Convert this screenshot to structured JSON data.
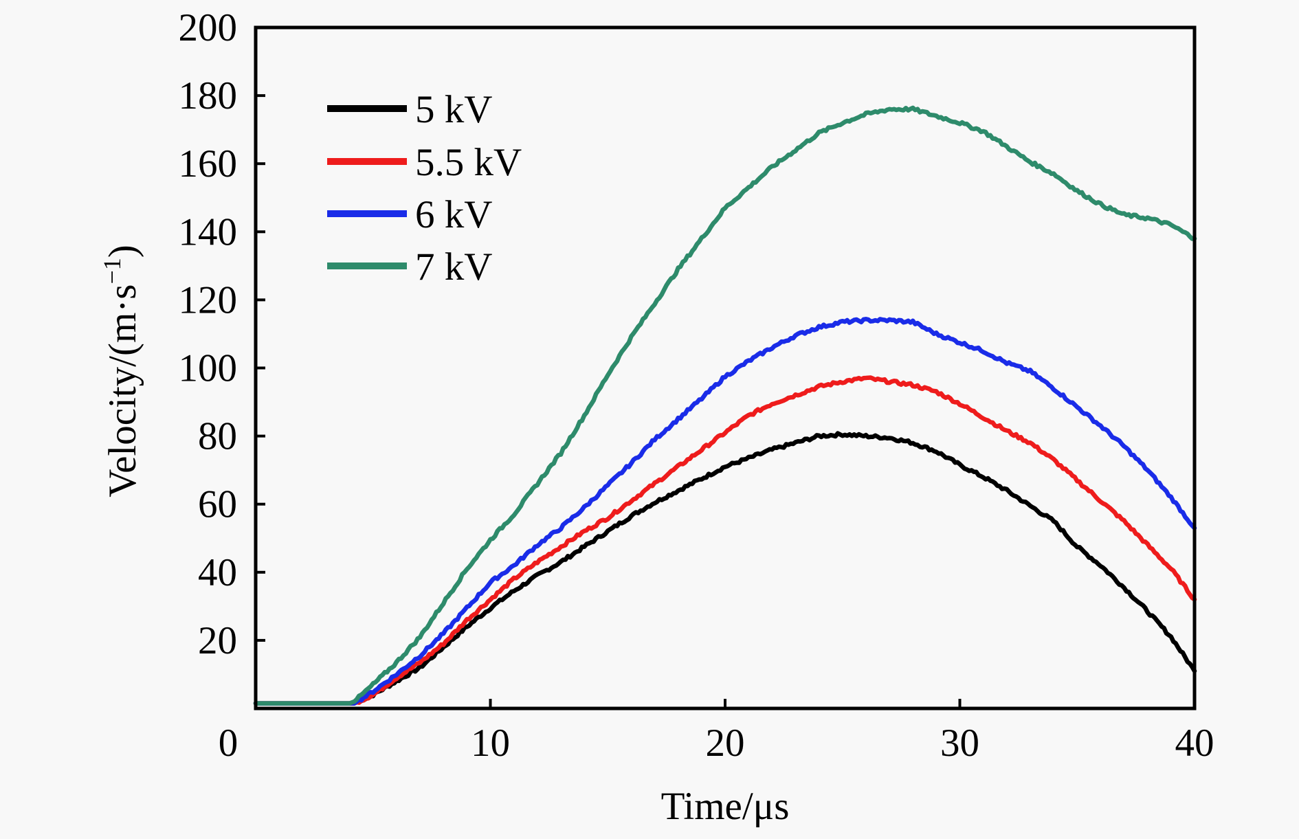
{
  "chart_data": {
    "type": "line",
    "title": "",
    "xlabel": "Time/μs",
    "ylabel": "Velocity/(m·s",
    "ylabel_sup": "−1",
    "ylabel_end": ")",
    "xlim": [
      0,
      40
    ],
    "ylim": [
      0,
      200
    ],
    "x_ticks": [
      0,
      10,
      20,
      30,
      40
    ],
    "x_tick_labels": [
      "0",
      "10",
      "20",
      "30",
      "40"
    ],
    "y_ticks": [
      20,
      40,
      60,
      80,
      100,
      120,
      140,
      160,
      180,
      200
    ],
    "y_tick_labels": [
      "20",
      "40",
      "60",
      "80",
      "100",
      "120",
      "140",
      "160",
      "180",
      "200"
    ],
    "grid": false,
    "legend_position": "top-left",
    "x": [
      0,
      1,
      2,
      3,
      4,
      4.2,
      5,
      6,
      7,
      8,
      9,
      10,
      11,
      12,
      13,
      14,
      15,
      16,
      17,
      18,
      19,
      20,
      21,
      22,
      23,
      24,
      25,
      26,
      27,
      28,
      29,
      30,
      31,
      32,
      33,
      34,
      35,
      36,
      37,
      38,
      39,
      40
    ],
    "series": [
      {
        "name": "5 kV",
        "color": "#000000",
        "values": [
          1.5,
          1.5,
          1.5,
          1.5,
          1.5,
          1.5,
          4,
          8,
          12,
          18,
          24,
          29.5,
          34.5,
          39,
          43,
          47.5,
          52,
          56.5,
          60.5,
          64,
          67.5,
          71,
          73.5,
          76,
          78,
          80,
          80.5,
          80,
          79.5,
          78,
          75.5,
          71.5,
          68,
          64,
          59.5,
          55,
          47.5,
          42,
          35.5,
          28.5,
          21,
          11
        ]
      },
      {
        "name": "5.5 kV",
        "color": "#ee1c1c",
        "values": [
          1.5,
          1.5,
          1.5,
          1.5,
          1.5,
          1.5,
          4,
          9,
          13.5,
          19,
          26,
          32,
          38,
          43,
          47.5,
          52,
          56,
          61,
          66,
          71,
          76,
          81,
          86,
          89.5,
          92,
          94.5,
          96,
          97,
          96,
          95,
          93,
          89.5,
          85.5,
          81.5,
          78,
          73,
          67,
          61,
          55,
          48,
          41,
          32
        ]
      },
      {
        "name": "6 kV",
        "color": "#1a2ce8",
        "values": [
          1.5,
          1.5,
          1.5,
          1.5,
          1.5,
          1.5,
          5,
          10,
          15.5,
          22,
          29.5,
          37,
          42,
          48,
          53,
          59,
          65.5,
          72,
          79,
          85,
          91,
          97.5,
          102,
          106,
          109.5,
          112,
          113.5,
          114,
          114,
          113.5,
          110,
          107.5,
          105,
          101.5,
          99,
          94,
          88.5,
          83,
          77,
          70,
          62,
          53
        ]
      },
      {
        "name": "7 kV",
        "color": "#2e8b6b",
        "values": [
          1.5,
          1.5,
          1.5,
          1.5,
          1.5,
          2,
          7,
          13.5,
          21,
          31,
          41,
          49.5,
          57,
          66,
          75,
          86,
          98,
          109,
          119,
          129,
          138,
          147,
          153,
          159,
          164,
          169,
          172,
          174.5,
          176,
          176,
          174,
          172,
          169.5,
          165,
          160.5,
          157,
          152,
          148,
          145,
          144,
          142,
          138
        ]
      }
    ]
  }
}
